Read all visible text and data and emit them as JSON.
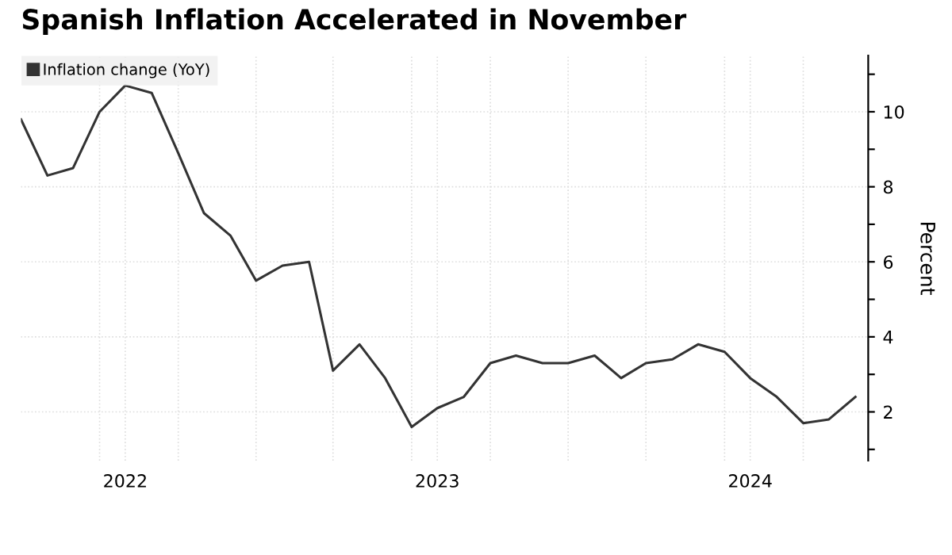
{
  "chart_data": {
    "type": "line",
    "title": "Spanish Inflation Accelerated in November",
    "ylabel": "Percent",
    "x": [
      "2022-03",
      "2022-04",
      "2022-05",
      "2022-06",
      "2022-07",
      "2022-08",
      "2022-09",
      "2022-10",
      "2022-11",
      "2022-12",
      "2023-01",
      "2023-02",
      "2023-03",
      "2023-04",
      "2023-05",
      "2023-06",
      "2023-07",
      "2023-08",
      "2023-09",
      "2023-10",
      "2023-11",
      "2023-12",
      "2024-01",
      "2024-02",
      "2024-03",
      "2024-04",
      "2024-05",
      "2024-06",
      "2024-07",
      "2024-08",
      "2024-09",
      "2024-10",
      "2024-11"
    ],
    "series": [
      {
        "name": "Inflation change (YoY)",
        "color": "#333333",
        "values": [
          9.8,
          8.3,
          8.5,
          10.0,
          10.7,
          10.5,
          8.9,
          7.3,
          6.7,
          5.5,
          5.9,
          6.0,
          3.1,
          3.8,
          2.9,
          1.6,
          2.1,
          2.4,
          3.3,
          3.5,
          3.3,
          3.3,
          3.5,
          2.9,
          3.3,
          3.4,
          3.8,
          3.6,
          2.9,
          2.4,
          1.7,
          1.8,
          2.4
        ]
      }
    ],
    "xlim": [
      "2022-03-01",
      "2024-11-16"
    ],
    "xticks": [
      {
        "value": "2022-06-01",
        "label": null
      },
      {
        "value": "2022-07-01",
        "label": "2022"
      },
      {
        "value": "2022-09-01",
        "label": null
      },
      {
        "value": "2022-12-01",
        "label": null
      },
      {
        "value": "2023-03-01",
        "label": null
      },
      {
        "value": "2023-06-01",
        "label": null
      },
      {
        "value": "2023-07-01",
        "label": "2023"
      },
      {
        "value": "2023-09-01",
        "label": null
      },
      {
        "value": "2023-12-01",
        "label": null
      },
      {
        "value": "2024-03-01",
        "label": null
      },
      {
        "value": "2024-06-01",
        "label": null
      },
      {
        "value": "2024-07-01",
        "label": "2024"
      },
      {
        "value": "2024-09-01",
        "label": null
      }
    ],
    "ylim": [
      0.7,
      11.5
    ],
    "yticks": [
      {
        "value": 1,
        "label": null
      },
      2,
      {
        "value": 3,
        "label": null
      },
      4,
      {
        "value": 5,
        "label": null
      },
      6,
      {
        "value": 7,
        "label": null
      },
      8,
      {
        "value": 9,
        "label": null
      },
      10,
      {
        "value": 11,
        "label": null
      }
    ],
    "grid": true,
    "legend": "top left",
    "marker": "none",
    "line_style": "solid"
  }
}
